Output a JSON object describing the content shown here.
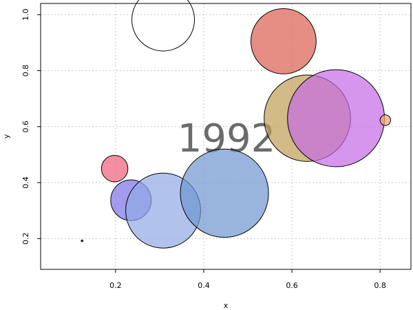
{
  "chart_data": {
    "type": "scatter",
    "title": "",
    "xlabel": "x",
    "ylabel": "y",
    "xlim": [
      0.03,
      0.87
    ],
    "ylim": [
      0.09,
      1.04
    ],
    "xticks": [
      0.2,
      0.4,
      0.6,
      0.8
    ],
    "yticks": [
      0.2,
      0.4,
      0.6,
      0.8,
      1.0
    ],
    "xtick_labels": [
      "0.2",
      "0.4",
      "0.6",
      "0.8"
    ],
    "ytick_labels": [
      "0.2",
      "0.4",
      "0.6",
      "0.8",
      "1.0"
    ],
    "grid": true,
    "annotation": "1992",
    "points": [
      {
        "x": 0.124,
        "y": 0.192,
        "size": 0.002,
        "color": "#000000"
      },
      {
        "x": 0.308,
        "y": 0.982,
        "size": 0.071,
        "color": "none"
      },
      {
        "x": 0.581,
        "y": 0.905,
        "size": 0.074,
        "color": "#dd5e50"
      },
      {
        "x": 0.635,
        "y": 0.63,
        "size": 0.098,
        "color": "#bf9e54"
      },
      {
        "x": 0.7,
        "y": 0.63,
        "size": 0.11,
        "color": "#c66ae6"
      },
      {
        "x": 0.812,
        "y": 0.623,
        "size": 0.012,
        "color": "#f4a36b"
      },
      {
        "x": 0.198,
        "y": 0.45,
        "size": 0.03,
        "color": "#ee6077"
      },
      {
        "x": 0.235,
        "y": 0.337,
        "size": 0.046,
        "color": "#7b71e7"
      },
      {
        "x": 0.308,
        "y": 0.3,
        "size": 0.085,
        "color": "#90aae6"
      },
      {
        "x": 0.447,
        "y": 0.362,
        "size": 0.1,
        "color": "#6e96d0"
      }
    ]
  }
}
